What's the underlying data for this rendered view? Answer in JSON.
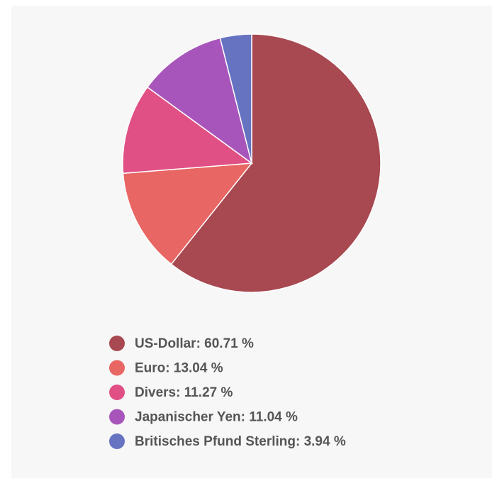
{
  "chart_data": {
    "type": "pie",
    "values": [
      60.71,
      13.04,
      11.27,
      11.04,
      3.94
    ],
    "value_labels": [
      "US-Dollar: 60.71 %",
      "Euro: 13.04 %",
      "Divers: 11.27 %",
      "Japanischer Yen: 11.04 %",
      "Britisches Pfund Sterling: 3.94 %"
    ],
    "colors": [
      "#a84850",
      "#e86663",
      "#e05084",
      "#a855bb",
      "#6673c1"
    ]
  }
}
